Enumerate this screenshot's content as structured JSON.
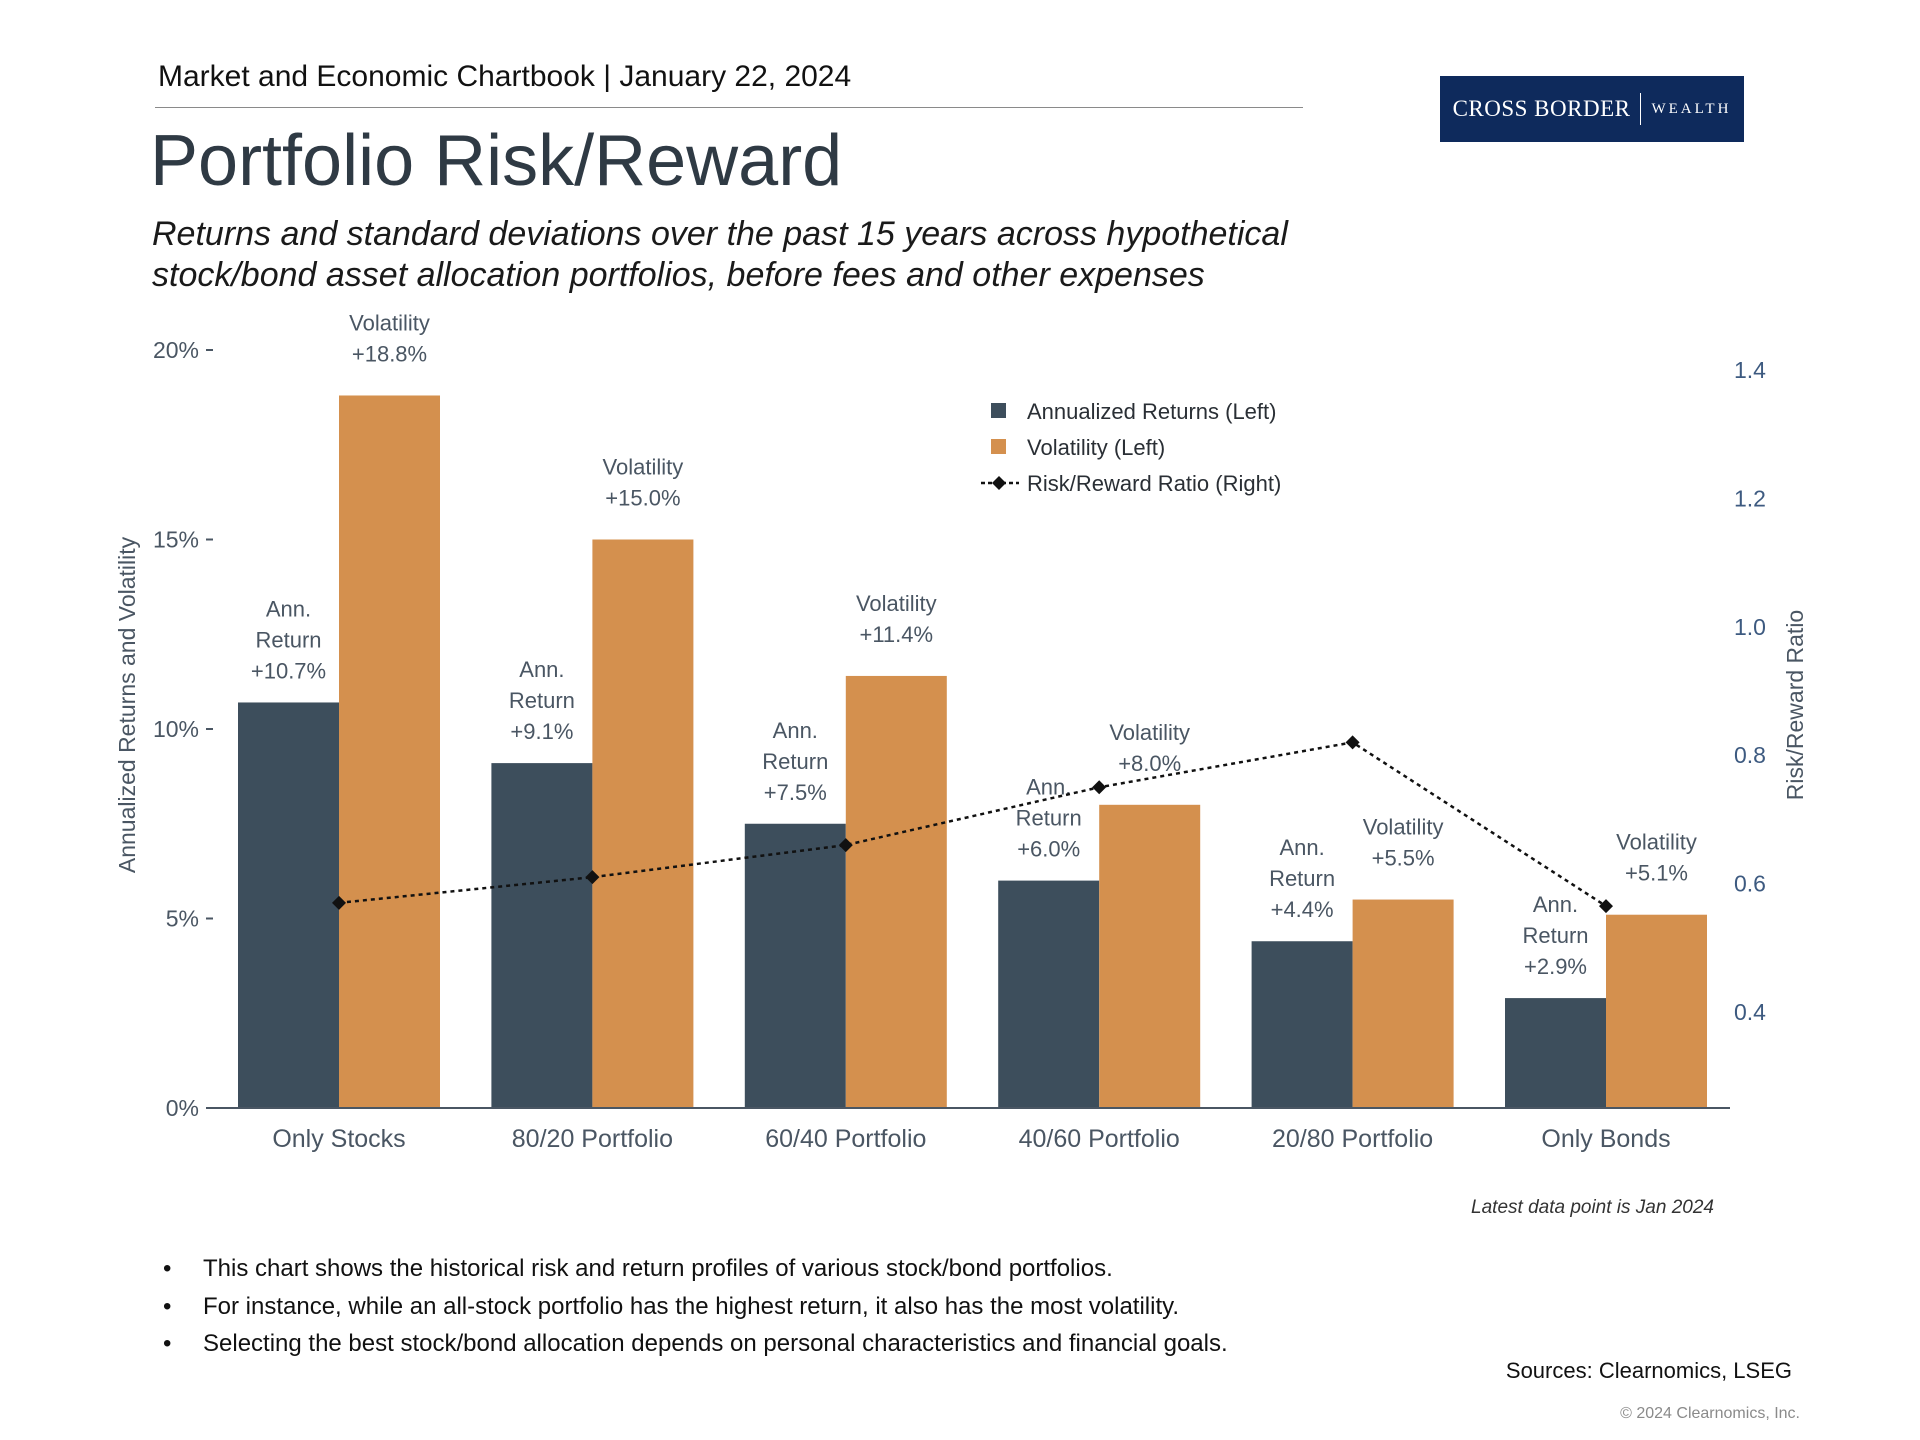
{
  "header": {
    "text": "Market and Economic Chartbook | January 22, 2024"
  },
  "logo": {
    "main": "CROSS BORDER",
    "sub": "WEALTH"
  },
  "title": "Portfolio Risk/Reward",
  "subtitle": {
    "line1": "Returns and standard deviations over the past 15 years across hypothetical",
    "line2": "stock/bond asset allocation portfolios, before fees and other expenses"
  },
  "colors": {
    "returns": "#3d4e5c",
    "volatility": "#d4904e",
    "ratio": "#111111",
    "axis": "#4a5663",
    "right_axis": "#3d5a80"
  },
  "chart_data": {
    "type": "bar",
    "categories": [
      "Only Stocks",
      "80/20 Portfolio",
      "60/40 Portfolio",
      "40/60 Portfolio",
      "20/80 Portfolio",
      "Only Bonds"
    ],
    "series": [
      {
        "name": "Annualized Returns (Left)",
        "values": [
          10.7,
          9.1,
          7.5,
          6.0,
          4.4,
          2.9
        ],
        "labels": [
          [
            "Ann.",
            "Return",
            "+10.7%"
          ],
          [
            "Ann.",
            "Return",
            "+9.1%"
          ],
          [
            "Ann.",
            "Return",
            "+7.5%"
          ],
          [
            "Ann.",
            "Return",
            "+6.0%"
          ],
          [
            "Ann.",
            "Return",
            "+4.4%"
          ],
          [
            "Ann.",
            "Return",
            "+2.9%"
          ]
        ]
      },
      {
        "name": "Volatility (Left)",
        "values": [
          18.8,
          15.0,
          11.4,
          8.0,
          5.5,
          5.1
        ],
        "labels": [
          [
            "Volatility",
            "+18.8%"
          ],
          [
            "Volatility",
            "+15.0%"
          ],
          [
            "Volatility",
            "+11.4%"
          ],
          [
            "Volatility",
            "+8.0%"
          ],
          [
            "Volatility",
            "+5.5%"
          ],
          [
            "Volatility",
            "+5.1%"
          ]
        ]
      },
      {
        "name": "Risk/Reward Ratio (Right)",
        "type": "line",
        "axis": "right",
        "values": [
          0.57,
          0.61,
          0.66,
          0.75,
          0.82,
          0.565
        ]
      }
    ],
    "ylabel": "Annualized Returns and Volatility",
    "ylim": [
      0,
      20
    ],
    "yticks": [
      "0%",
      "5%",
      "10%",
      "15%",
      "20%"
    ],
    "y2label": "Risk/Reward Ratio",
    "y2ticks": [
      "0.4",
      "0.6",
      "0.8",
      "1.0",
      "1.2",
      "1.4"
    ],
    "legend_position": "top-center",
    "grid": false
  },
  "note": "Latest data point is Jan 2024",
  "bullets": [
    "This chart shows the historical risk and return profiles of various stock/bond portfolios.",
    "For instance, while an all-stock portfolio has the highest return, it also has the most volatility.",
    "Selecting the best stock/bond allocation depends on personal characteristics and financial goals."
  ],
  "bullet_symbol": "•",
  "sources": "Sources: Clearnomics, LSEG",
  "copyright": "© 2024 Clearnomics, Inc."
}
